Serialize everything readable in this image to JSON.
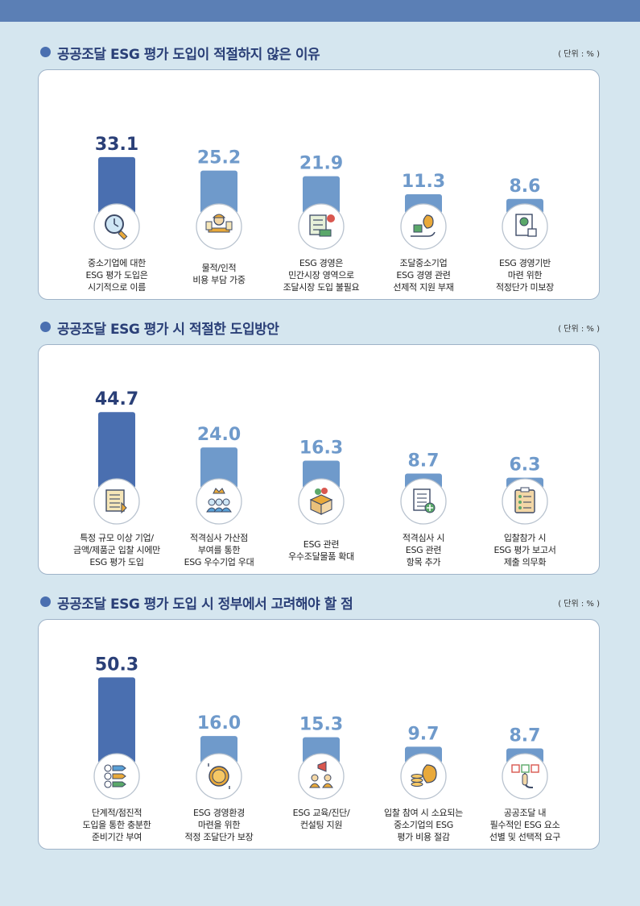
{
  "sections": [
    {
      "title": "공공조달 ESG 평가 도입이 적절하지 않은 이유",
      "unit": "( 단위 : % )",
      "chart_data": {
        "type": "bar",
        "unit": "%",
        "categories": [
          [
            "중소기업에 대한",
            "ESG 평가 도입은",
            "시기적으로 이름"
          ],
          [
            "물적/인적",
            "비용 부담 가중"
          ],
          [
            "ESG 경영은",
            "민간시장 영역으로",
            "조달시장 도입 불필요"
          ],
          [
            "조달중소기업",
            "ESG 경영 관련",
            "선제적 지원 부재"
          ],
          [
            "ESG 경영기반",
            "마련 위한",
            "적정단가 미보장"
          ]
        ],
        "values": [
          33.1,
          25.2,
          21.9,
          11.3,
          8.6
        ],
        "value_labels": [
          "33.1",
          "25.2",
          "21.9",
          "11.3",
          "8.6"
        ],
        "icons": [
          "magnifier-clock-icon",
          "worker-desk-icon",
          "checklist-truck-icon",
          "money-bag-hand-icon",
          "document-lock-icon"
        ]
      }
    },
    {
      "title": "공공조달 ESG 평가 시 적절한 도입방안",
      "unit": "( 단위 : % )",
      "chart_data": {
        "type": "bar",
        "unit": "%",
        "categories": [
          [
            "특정 규모 이상 기업/",
            "금액/제품군 입찰 시에만",
            "ESG 평가 도입"
          ],
          [
            "적격심사 가산점",
            "부여를 통한",
            "ESG 우수기업 우대"
          ],
          [
            "ESG 관련",
            "우수조달물품 확대"
          ],
          [
            "적격심사 시",
            "ESG 관련",
            "항목 추가"
          ],
          [
            "입찰참가 시",
            "ESG 평가 보고서",
            "제출 의무화"
          ]
        ],
        "values": [
          44.7,
          24.0,
          16.3,
          8.7,
          6.3
        ],
        "value_labels": [
          "44.7",
          "24.0",
          "16.3",
          "8.7",
          "6.3"
        ],
        "icons": [
          "document-list-icon",
          "crown-team-icon",
          "box-sprout-icon",
          "document-plus-icon",
          "clipboard-checklist-icon"
        ]
      }
    },
    {
      "title": "공공조달 ESG 평가 도입 시 정부에서 고려해야 할 점",
      "unit": "( 단위 : % )",
      "chart_data": {
        "type": "bar",
        "unit": "%",
        "categories": [
          [
            "단계적/점진적",
            "도입을 통한 충분한",
            "준비기간 부여"
          ],
          [
            "ESG 경영환경",
            "마련을 위한",
            "적정 조달단가 보장"
          ],
          [
            "ESG 교육/진단/",
            "컨설팅 지원"
          ],
          [
            "입찰 참여 시 소요되는",
            "중소기업의 ESG",
            "평가 비용 절감"
          ],
          [
            "공공조달 내",
            "필수적인 ESG 요소",
            "선별 및 선택적 요구"
          ]
        ],
        "values": [
          50.3,
          16.0,
          15.3,
          9.7,
          8.7
        ],
        "value_labels": [
          "50.3",
          "16.0",
          "15.3",
          "9.7",
          "8.7"
        ],
        "icons": [
          "steps-arrows-icon",
          "dollar-coin-icon",
          "megaphone-team-icon",
          "coins-bag-icon",
          "hand-select-icon"
        ]
      }
    }
  ],
  "colors": {
    "highlight_bar": "#4a6fb0",
    "bar": "#6f9acb",
    "highlight_value": "#2a3f77",
    "value": "#6f9acb",
    "title": "#2a3f77",
    "bullet": "#4a6fb0",
    "background": "#d5e6ef",
    "top_band": "#5b7fb5"
  }
}
